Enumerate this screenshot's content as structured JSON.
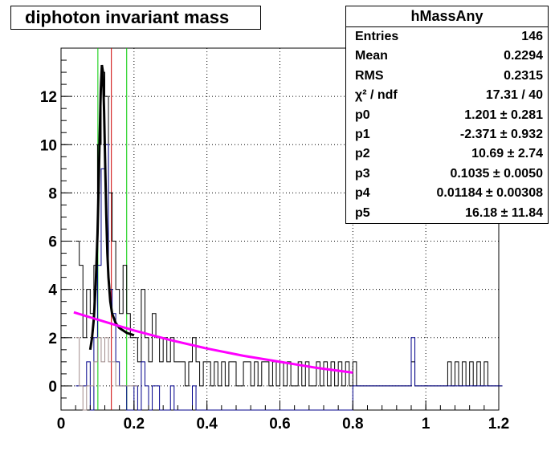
{
  "title": "diphoton invariant mass",
  "stats": {
    "name": "hMassAny",
    "rows": [
      {
        "key": "Entries",
        "value": "146"
      },
      {
        "key": "Mean",
        "value": "0.2294"
      },
      {
        "key": "RMS",
        "value": "0.2315"
      },
      {
        "key": "χ² / ndf",
        "value": "17.31 / 40"
      },
      {
        "key": "p0",
        "value": "1.201 ± 0.281"
      },
      {
        "key": "p1",
        "value": "-2.371 ± 0.932"
      },
      {
        "key": "p2",
        "value": "10.69 ± 2.74"
      },
      {
        "key": "p3",
        "value": "0.1035 ± 0.0050"
      },
      {
        "key": "p4",
        "value": "0.01184 ± 0.00308"
      },
      {
        "key": "p5",
        "value": "16.18 ± 11.84"
      }
    ]
  },
  "chart_data": {
    "type": "line",
    "xlim": [
      0,
      1.2
    ],
    "ylim": [
      -1,
      14
    ],
    "xticks": [
      0,
      0.2,
      0.4,
      0.6,
      0.8,
      1,
      1.2
    ],
    "xtick_labels": [
      "0",
      "0.2",
      "0.4",
      "0.6",
      "0.8",
      "1",
      "1.2"
    ],
    "yticks": [
      0,
      2,
      4,
      6,
      8,
      10,
      12
    ],
    "ytick_labels": [
      "0",
      "2",
      "4",
      "6",
      "8",
      "10",
      "12"
    ],
    "grid": true,
    "colors": {
      "hist_black": "#000000",
      "hist_blue": "#00008b",
      "hist_grey": "#a08c8c",
      "fit_total": "#000000",
      "fit_background": "#ff00ff",
      "line_green": "#00cc00",
      "line_red": "#cc0000"
    },
    "vertical_lines": [
      {
        "x": 0.101,
        "color": "#00cc00"
      },
      {
        "x": 0.138,
        "color": "#cc0000"
      },
      {
        "x": 0.18,
        "color": "#00cc00"
      }
    ],
    "series": [
      {
        "style": "histogram",
        "color": "#000000",
        "x": [
          0.04,
          0.05,
          0.06,
          0.07,
          0.08,
          0.09,
          0.1,
          0.11,
          0.12,
          0.13,
          0.14,
          0.15,
          0.16,
          0.17,
          0.18,
          0.19,
          0.2,
          0.21,
          0.22,
          0.23,
          0.24,
          0.25,
          0.26,
          0.27,
          0.28,
          0.29,
          0.3,
          0.31,
          0.32,
          0.33,
          0.34,
          0.35,
          0.36,
          0.37,
          0.38,
          0.39,
          0.4,
          0.41,
          0.42,
          0.43,
          0.44,
          0.45,
          0.46,
          0.47,
          0.48,
          0.49,
          0.5,
          0.51,
          0.52,
          0.53,
          0.54,
          0.55,
          0.56,
          0.57,
          0.58,
          0.59,
          0.6,
          0.61,
          0.62,
          0.63,
          0.64,
          0.65,
          0.66,
          0.67,
          0.68,
          0.69,
          0.7,
          0.71,
          0.72,
          0.73,
          0.74,
          0.75,
          0.76,
          0.77,
          0.78,
          0.79,
          0.8,
          0.81,
          0.82,
          0.83,
          0.84,
          0.85,
          0.86,
          0.87,
          0.88,
          0.89,
          0.9,
          0.91,
          0.92,
          0.93,
          0.94,
          0.95,
          0.96,
          0.97,
          0.98,
          0.99,
          1.0,
          1.01,
          1.02,
          1.03,
          1.04,
          1.05,
          1.06,
          1.07,
          1.08,
          1.09,
          1.1,
          1.11,
          1.12,
          1.13,
          1.14,
          1.15,
          1.16,
          1.17,
          1.18,
          1.19,
          1.2
        ],
        "values": [
          6,
          5,
          2,
          4,
          3,
          5,
          10,
          13,
          12,
          8,
          6,
          4,
          3,
          5,
          3,
          2,
          2,
          1,
          4,
          2,
          1,
          3,
          2,
          1,
          2,
          1,
          2,
          1,
          1,
          1,
          0,
          1,
          2,
          1,
          0,
          1,
          1,
          0,
          1,
          0,
          1,
          0,
          1,
          1,
          0,
          0,
          1,
          1,
          0,
          1,
          0,
          1,
          1,
          0,
          1,
          0,
          1,
          0,
          1,
          0,
          0,
          1,
          0,
          1,
          0,
          0,
          1,
          0,
          1,
          0,
          1,
          0,
          1,
          0,
          1,
          0,
          1,
          0,
          0,
          0,
          0,
          0,
          0,
          0,
          0,
          0,
          0,
          0,
          0,
          0,
          0,
          0,
          1,
          0,
          0,
          0,
          0,
          0,
          0,
          0,
          0,
          0,
          1,
          0,
          1,
          0,
          1,
          0,
          1,
          0,
          1,
          0,
          1,
          0,
          0,
          0,
          0
        ]
      },
      {
        "style": "histogram",
        "color": "#00008b",
        "x": [
          0.04,
          0.05,
          0.06,
          0.07,
          0.08,
          0.09,
          0.1,
          0.11,
          0.12,
          0.13,
          0.14,
          0.15,
          0.16,
          0.17,
          0.18,
          0.19,
          0.2,
          0.21,
          0.22,
          0.23,
          0.24,
          0.25,
          0.26,
          0.27,
          0.28,
          0.29,
          0.3,
          0.31,
          0.32,
          0.33,
          0.34,
          0.35,
          0.36,
          0.37,
          0.38,
          0.39,
          0.4,
          0.41,
          0.42,
          0.43,
          0.44,
          0.45,
          0.46,
          0.47,
          0.48,
          0.49,
          0.5,
          0.51,
          0.52,
          0.53,
          0.54,
          0.55,
          0.56,
          0.57,
          0.58,
          0.59,
          0.6,
          0.61,
          0.62,
          0.63,
          0.64,
          0.65,
          0.66,
          0.67,
          0.68,
          0.69,
          0.7,
          0.71,
          0.72,
          0.73,
          0.74,
          0.75,
          0.76,
          0.77,
          0.78,
          0.79,
          0.8,
          0.81,
          0.82,
          0.83,
          0.84,
          0.85,
          0.86,
          0.87,
          0.88,
          0.89,
          0.9,
          0.91,
          0.92,
          0.93,
          0.94,
          0.95,
          0.96,
          0.97,
          0.98,
          0.99,
          1.0,
          1.01,
          1.02,
          1.03,
          1.04,
          1.05,
          1.06,
          1.07,
          1.08,
          1.09,
          1.1,
          1.11,
          1.12,
          1.13,
          1.14,
          1.15,
          1.16,
          1.17,
          1.18,
          1.19,
          1.2
        ],
        "values": [
          0,
          0,
          0,
          1,
          -1,
          2,
          5,
          9,
          10,
          4,
          3,
          1,
          0,
          0,
          -1,
          -1,
          0,
          -1,
          1,
          0,
          -1,
          0,
          0,
          -1,
          -1,
          -1,
          0,
          -1,
          -1,
          -1,
          -1,
          -1,
          0,
          -1,
          -1,
          -1,
          -1,
          -1,
          -1,
          -1,
          -1,
          -1,
          -1,
          -1,
          -1,
          -1,
          -1,
          -1,
          -1,
          -1,
          -1,
          -1,
          -1,
          -1,
          -1,
          -1,
          -1,
          -1,
          -1,
          -1,
          -1,
          -1,
          -1,
          -1,
          -1,
          -1,
          -1,
          -1,
          -1,
          -1,
          -1,
          -1,
          -1,
          -1,
          -1,
          -1,
          0,
          0,
          0,
          0,
          0,
          0,
          0,
          0,
          0,
          0,
          0,
          0,
          0,
          0,
          0,
          0,
          2,
          0,
          0,
          0,
          0,
          0,
          0,
          0,
          0,
          0,
          0,
          0,
          0,
          0,
          0,
          0,
          0,
          0,
          0,
          0,
          0,
          0,
          0,
          0,
          0
        ]
      },
      {
        "style": "histogram",
        "color": "#a08c8c",
        "x": [
          0.04,
          0.05,
          0.06,
          0.07,
          0.08,
          0.09,
          0.1,
          0.11,
          0.12,
          0.13,
          0.14,
          0.15,
          0.16,
          0.17,
          0.18,
          0.19,
          0.2
        ],
        "values": [
          2,
          0,
          -1,
          0,
          0,
          1,
          2,
          1,
          2,
          1,
          1,
          0,
          0,
          0,
          0,
          0,
          0
        ]
      },
      {
        "style": "curve",
        "name": "total fit",
        "color": "#000000",
        "x": [
          0.08,
          0.085,
          0.09,
          0.095,
          0.1,
          0.103,
          0.106,
          0.109,
          0.112,
          0.115,
          0.118,
          0.121,
          0.124,
          0.127,
          0.13,
          0.135,
          0.14,
          0.15,
          0.16,
          0.17,
          0.18,
          0.19,
          0.2
        ],
        "values": [
          1.5,
          2.0,
          2.8,
          4.2,
          6.3,
          8.2,
          10.4,
          12.3,
          13.3,
          13.0,
          11.4,
          9.2,
          7.1,
          5.5,
          4.5,
          3.5,
          3.0,
          2.6,
          2.4,
          2.3,
          2.2,
          2.15,
          2.1
        ]
      },
      {
        "style": "curve",
        "name": "background fit",
        "color": "#ff00ff",
        "x": [
          0.035,
          0.1,
          0.2,
          0.3,
          0.4,
          0.5,
          0.6,
          0.7,
          0.8
        ],
        "values": [
          3.05,
          2.75,
          2.3,
          1.9,
          1.55,
          1.25,
          1.0,
          0.75,
          0.55
        ]
      }
    ]
  }
}
